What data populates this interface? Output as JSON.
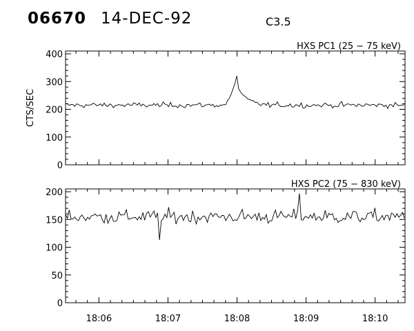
{
  "header": {
    "event_id": "06670",
    "date": "14-DEC-92",
    "goes_class": "C3.5"
  },
  "chart_data": [
    {
      "type": "line",
      "title": "HXS PC1 (25 − 75 keV)",
      "xlabel": "",
      "ylabel": "CTS/SEC",
      "ylim": [
        0,
        410
      ],
      "yticks": [
        0,
        100,
        200,
        300,
        400
      ],
      "xrange": [
        "18:05:31",
        "18:10:26"
      ],
      "x_tick_labels": [
        "18:06",
        "18:07",
        "18:08",
        "18:09",
        "18:10"
      ],
      "grid": false,
      "baseline_cts_per_sec": 215,
      "peak": {
        "time": "18:07:59",
        "value": 320
      }
    },
    {
      "type": "line",
      "title": "HXS PC2 (75 − 830 keV)",
      "xlabel": "",
      "ylabel": "",
      "ylim": [
        0,
        205
      ],
      "yticks": [
        0,
        50,
        100,
        150,
        200
      ],
      "xrange": [
        "18:05:31",
        "18:10:26"
      ],
      "x_tick_labels": [
        "18:06",
        "18:07",
        "18:08",
        "18:09",
        "18:10"
      ],
      "grid": false,
      "baseline_cts_per_sec": 155,
      "min": {
        "time": "18:06:52",
        "value": 113
      },
      "max": {
        "time": "18:08:54",
        "value": 197
      }
    }
  ]
}
